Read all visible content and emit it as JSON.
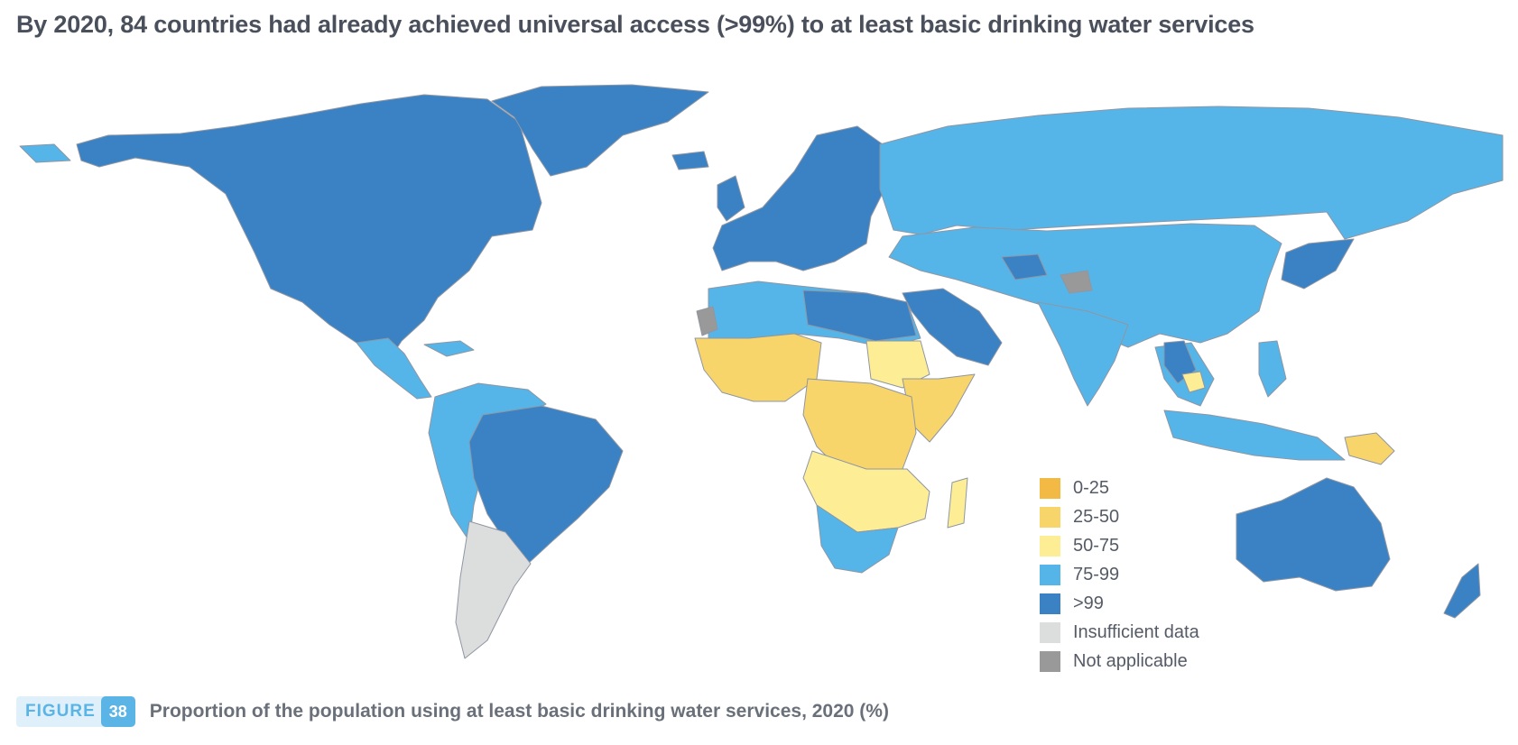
{
  "title": "By 2020, 84 countries had already achieved universal access (>99%) to at least basic drinking water services",
  "legend": {
    "items": [
      {
        "label": "0-25",
        "color": "#f2b945"
      },
      {
        "label": "25-50",
        "color": "#f8d56a"
      },
      {
        "label": "50-75",
        "color": "#fdee95"
      },
      {
        "label": "75-99",
        "color": "#55b5e8"
      },
      {
        "label": ">99",
        "color": "#3a82c4"
      },
      {
        "label": "Insufficient data",
        "color": "#dcdddd"
      },
      {
        "label": "Not applicable",
        "color": "#999999"
      }
    ]
  },
  "figure": {
    "label": "FIGURE",
    "number": "38",
    "caption": "Proportion of the population using at least basic drinking water services, 2020 (%)"
  }
}
